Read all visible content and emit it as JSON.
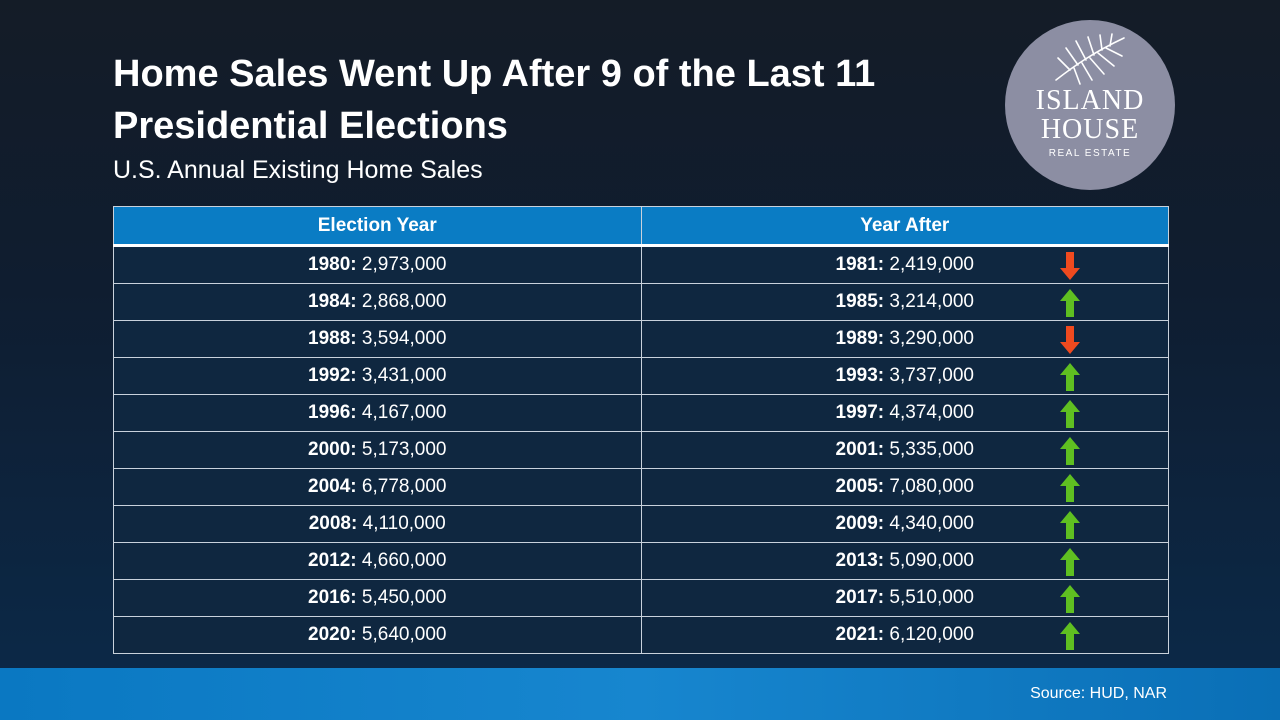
{
  "title": "Home Sales Went Up After 9 of the Last 11 Presidential Elections",
  "subtitle": "U.S. Annual Existing Home Sales",
  "logo": {
    "line1": "ISLAND",
    "line2": "HOUSE",
    "line3": "REAL ESTATE",
    "icon": "palm-leaf-icon",
    "background": "#8c8ea3"
  },
  "source": "Source: HUD, NAR",
  "colors": {
    "header": "#0a7cc4",
    "up": "#5fbf21",
    "down": "#f04a1f"
  },
  "chart_data": {
    "type": "table",
    "columns": [
      "Election Year",
      "Year After"
    ],
    "rows": [
      {
        "election": {
          "year": "1980:",
          "sales": "2,973,000"
        },
        "after": {
          "year": "1981:",
          "sales": "2,419,000"
        },
        "trend": "down"
      },
      {
        "election": {
          "year": "1984:",
          "sales": "2,868,000"
        },
        "after": {
          "year": "1985:",
          "sales": "3,214,000"
        },
        "trend": "up"
      },
      {
        "election": {
          "year": "1988:",
          "sales": "3,594,000"
        },
        "after": {
          "year": "1989:",
          "sales": "3,290,000"
        },
        "trend": "down"
      },
      {
        "election": {
          "year": "1992:",
          "sales": "3,431,000"
        },
        "after": {
          "year": "1993:",
          "sales": "3,737,000"
        },
        "trend": "up"
      },
      {
        "election": {
          "year": "1996:",
          "sales": "4,167,000"
        },
        "after": {
          "year": "1997:",
          "sales": "4,374,000"
        },
        "trend": "up"
      },
      {
        "election": {
          "year": "2000:",
          "sales": "5,173,000"
        },
        "after": {
          "year": "2001:",
          "sales": "5,335,000"
        },
        "trend": "up"
      },
      {
        "election": {
          "year": "2004:",
          "sales": "6,778,000"
        },
        "after": {
          "year": "2005:",
          "sales": "7,080,000"
        },
        "trend": "up"
      },
      {
        "election": {
          "year": "2008:",
          "sales": "4,110,000"
        },
        "after": {
          "year": "2009:",
          "sales": "4,340,000"
        },
        "trend": "up"
      },
      {
        "election": {
          "year": "2012:",
          "sales": "4,660,000"
        },
        "after": {
          "year": "2013:",
          "sales": "5,090,000"
        },
        "trend": "up"
      },
      {
        "election": {
          "year": "2016:",
          "sales": "5,450,000"
        },
        "after": {
          "year": "2017:",
          "sales": "5,510,000"
        },
        "trend": "up"
      },
      {
        "election": {
          "year": "2020:",
          "sales": "5,640,000"
        },
        "after": {
          "year": "2021:",
          "sales": "6,120,000"
        },
        "trend": "up"
      }
    ]
  }
}
